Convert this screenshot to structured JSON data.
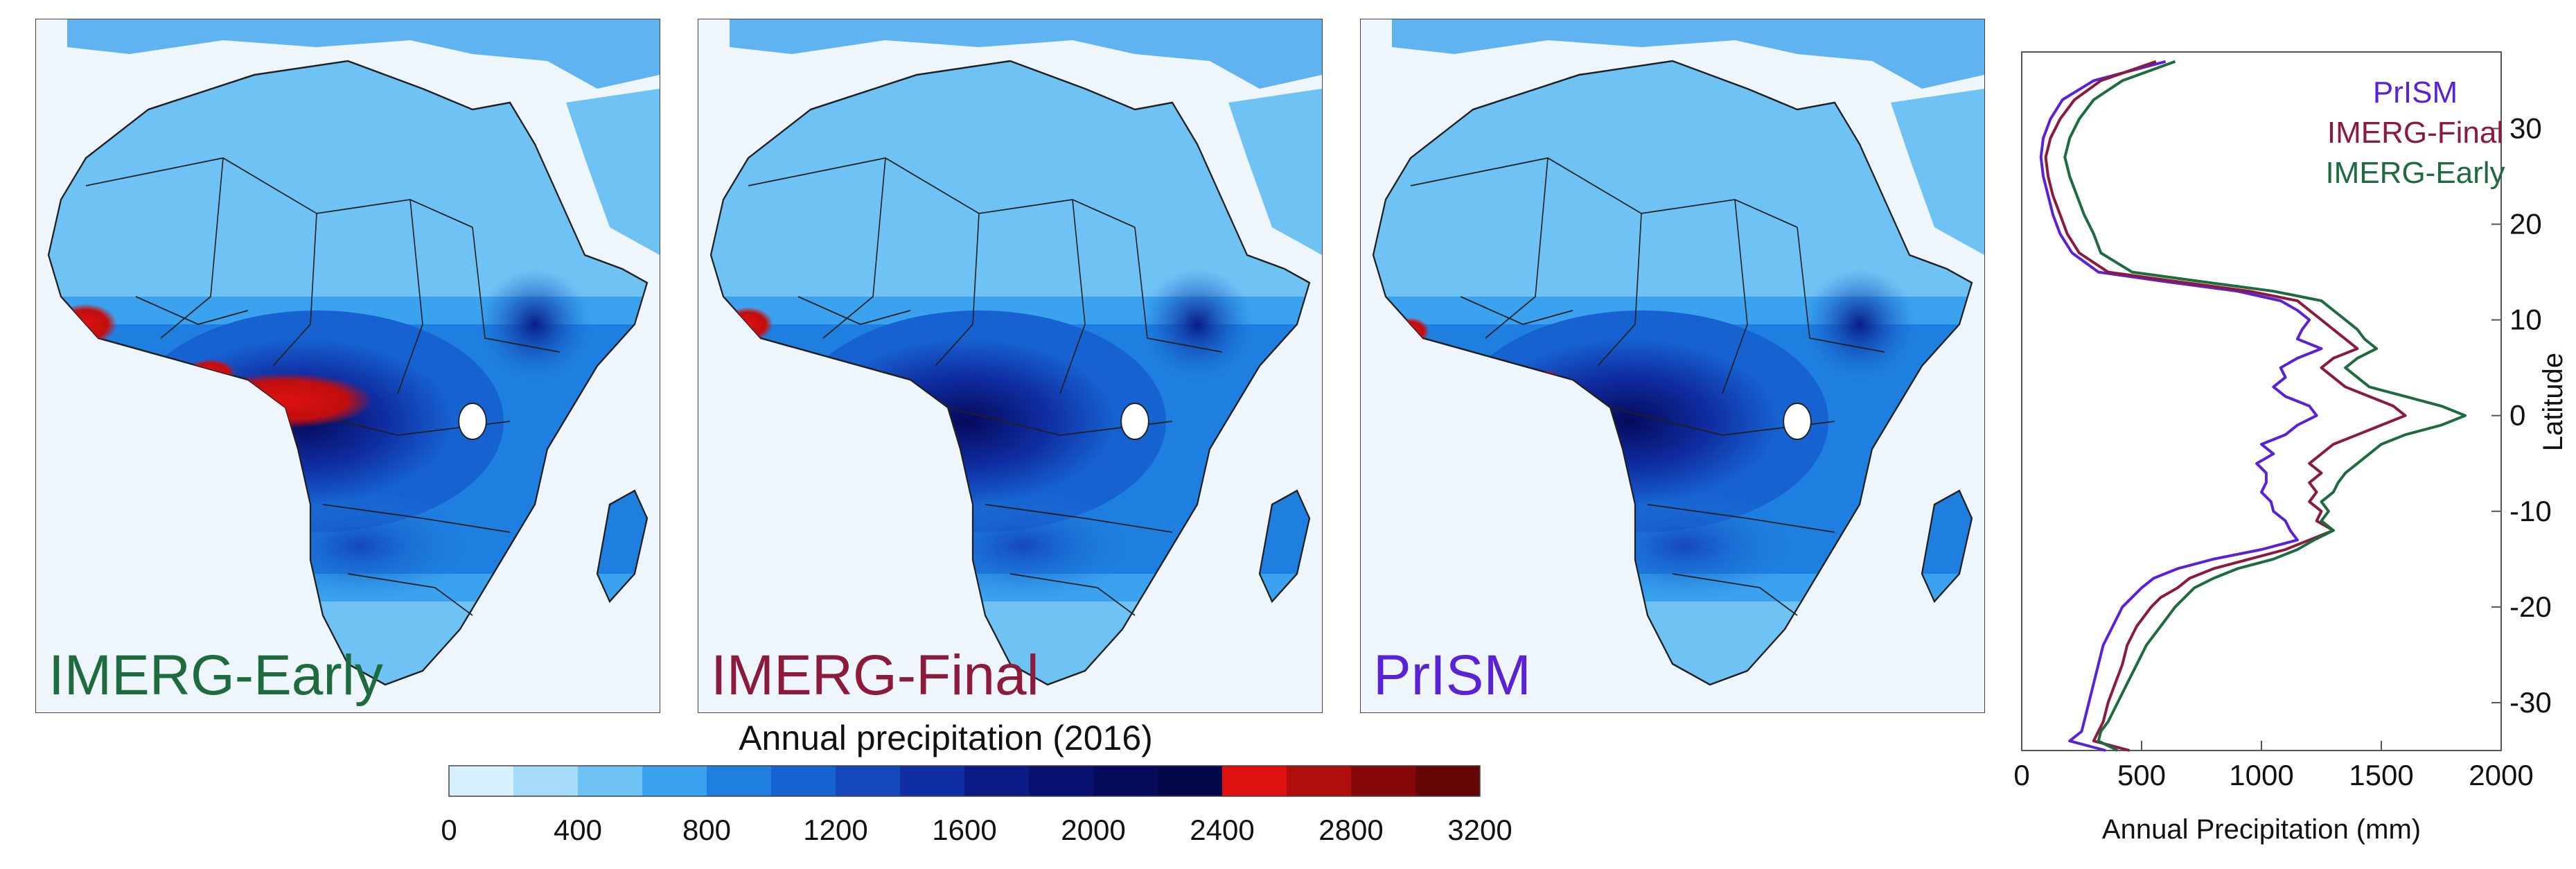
{
  "maps": [
    {
      "label": "IMERG-Early",
      "label_color": "#1d6b3e"
    },
    {
      "label": "IMERG-Final",
      "label_color": "#8b1a3c"
    },
    {
      "label": "PrISM",
      "label_color": "#5a22d6"
    }
  ],
  "colorbar": {
    "title": "Annual precipitation (2016)",
    "tick_labels": [
      "0",
      "400",
      "800",
      "1200",
      "1600",
      "2000",
      "2400",
      "2800",
      "3200"
    ],
    "colors": [
      "#d6f0fd",
      "#a6dbf8",
      "#6fc2f4",
      "#3aa2ee",
      "#1e7fe0",
      "#1762d1",
      "#1447bc",
      "#0f2ea3",
      "#0a1b86",
      "#081070",
      "#060a5b",
      "#04074a",
      "#de1010",
      "#b00d0d",
      "#870808",
      "#640606"
    ]
  },
  "chart_data": {
    "type": "line",
    "xlabel": "Annual Precipitation (mm)",
    "ylabel": "Latitude",
    "xlim": [
      0,
      2000
    ],
    "ylim": [
      -35,
      38
    ],
    "xticks": [
      0,
      500,
      1000,
      1500,
      2000
    ],
    "yticks": [
      30,
      20,
      10,
      0,
      -10,
      -20,
      -30
    ],
    "grid": false,
    "legend_position": "top-right",
    "latitudes": [
      37,
      35,
      33,
      31,
      29,
      27,
      25,
      23,
      21,
      19,
      17,
      15,
      14,
      13,
      12,
      11,
      10,
      9,
      8,
      7,
      6,
      5,
      4,
      3,
      2,
      1,
      0,
      -1,
      -2,
      -3,
      -4,
      -5,
      -6,
      -7,
      -8,
      -9,
      -10,
      -11,
      -12,
      -13,
      -14,
      -15,
      -16,
      -17,
      -18,
      -19,
      -20,
      -22,
      -24,
      -26,
      -28,
      -30,
      -32,
      -33,
      -34,
      -35
    ],
    "series": [
      {
        "name": "PrISM",
        "color": "#5a22d6",
        "values": [
          600,
          300,
          170,
          120,
          90,
          80,
          90,
          110,
          130,
          160,
          210,
          320,
          600,
          900,
          1080,
          1150,
          1200,
          1170,
          1150,
          1250,
          1150,
          1080,
          1100,
          1050,
          1100,
          1200,
          1230,
          1150,
          1100,
          1000,
          1050,
          980,
          1020,
          1020,
          1000,
          1040,
          1050,
          1100,
          1120,
          1150,
          1000,
          800,
          650,
          550,
          500,
          460,
          420,
          380,
          340,
          320,
          300,
          280,
          260,
          250,
          200,
          350
        ]
      },
      {
        "name": "IMERG-Final",
        "color": "#8b1a3c",
        "values": [
          560,
          330,
          220,
          160,
          120,
          100,
          110,
          130,
          160,
          190,
          240,
          360,
          650,
          950,
          1150,
          1200,
          1250,
          1300,
          1350,
          1400,
          1300,
          1250,
          1300,
          1350,
          1450,
          1550,
          1600,
          1500,
          1400,
          1300,
          1250,
          1200,
          1250,
          1200,
          1230,
          1200,
          1250,
          1230,
          1300,
          1200,
          1100,
          950,
          800,
          700,
          650,
          580,
          540,
          480,
          440,
          420,
          390,
          360,
          340,
          320,
          300,
          450
        ]
      },
      {
        "name": "IMERG-Early",
        "color": "#1d6b3e",
        "values": [
          640,
          420,
          300,
          240,
          200,
          180,
          200,
          230,
          260,
          300,
          330,
          460,
          750,
          1050,
          1250,
          1300,
          1350,
          1400,
          1430,
          1480,
          1400,
          1350,
          1400,
          1450,
          1600,
          1750,
          1850,
          1750,
          1600,
          1500,
          1450,
          1400,
          1350,
          1320,
          1300,
          1250,
          1280,
          1250,
          1300,
          1220,
          1150,
          1050,
          900,
          800,
          720,
          680,
          640,
          580,
          520,
          480,
          440,
          400,
          360,
          330,
          320,
          400
        ]
      }
    ]
  }
}
